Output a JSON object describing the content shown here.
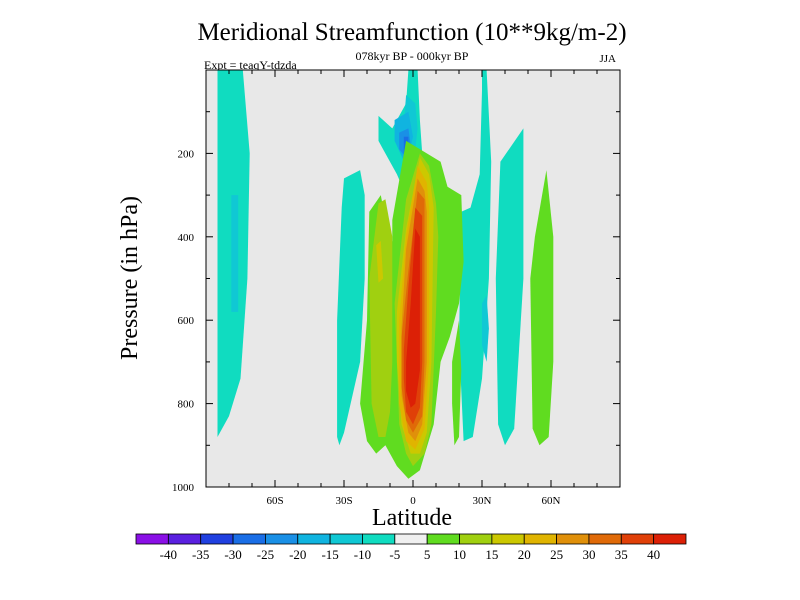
{
  "chart_data": {
    "type": "heatmap",
    "title": "Meridional Streamfunction (10**9kg/m-2)",
    "subtitle": "078kyr BP - 000kyr BP",
    "left_label": "Expt = teaqY-tdzda",
    "right_label": "JJA",
    "xlabel": "Latitude",
    "ylabel": "Pressure (in hPa)",
    "xlim": [
      -90,
      90
    ],
    "ylim": [
      0,
      1000
    ],
    "y_inverted": true,
    "xticks": [
      -60,
      -30,
      0,
      30,
      60
    ],
    "xtick_labels": [
      "60S",
      "30S",
      "0",
      "30N",
      "60N"
    ],
    "yticks": [
      200,
      400,
      600,
      800,
      1000
    ],
    "ytick_labels": [
      "200",
      "400",
      "600",
      "800",
      "1000"
    ],
    "background_fill": "#e8e8e8",
    "colorbar": {
      "labels": [
        "-40",
        "-35",
        "-30",
        "-25",
        "-20",
        "-15",
        "-10",
        "-5",
        "5",
        "10",
        "15",
        "20",
        "25",
        "30",
        "35",
        "40"
      ],
      "colors": [
        "#8a10e6",
        "#5a20e0",
        "#2040e0",
        "#1a6ee6",
        "#1a90e6",
        "#10b4e0",
        "#10c8d4",
        "#10dcc0",
        "#f0f0f0",
        "#60dc20",
        "#a0d010",
        "#ccc800",
        "#e0b400",
        "#e0900a",
        "#e06a08",
        "#e04008",
        "#dc2006"
      ]
    },
    "contours": [
      {
        "value": -5,
        "color": "#10dcc0",
        "lat": [
          -85,
          -74,
          -71,
          -72,
          -75,
          -80,
          -85,
          -85
        ],
        "p": [
          0,
          0,
          200,
          500,
          740,
          830,
          880,
          0
        ]
      },
      {
        "value": -5,
        "color": "#10dcc0",
        "lat": [
          -30,
          -23,
          -21,
          -21,
          -23,
          -30,
          -32,
          -33,
          -33,
          -31
        ],
        "p": [
          260,
          240,
          300,
          500,
          700,
          870,
          900,
          880,
          600,
          330
        ]
      },
      {
        "value": -5,
        "color": "#10dcc0",
        "lat": [
          -9,
          -3,
          -2,
          2,
          3,
          4,
          0,
          -7,
          -15,
          -15
        ],
        "p": [
          140,
          80,
          0,
          0,
          120,
          200,
          340,
          250,
          170,
          110
        ]
      },
      {
        "value": -5,
        "color": "#10dcc0",
        "lat": [
          21,
          25,
          29,
          30,
          30,
          32,
          34,
          33,
          30,
          26,
          22,
          20
        ],
        "p": [
          340,
          330,
          250,
          50,
          0,
          0,
          220,
          500,
          740,
          880,
          890,
          650
        ]
      },
      {
        "value": -5,
        "color": "#10dcc0",
        "lat": [
          38,
          48,
          48,
          44,
          40,
          37,
          36
        ],
        "p": [
          220,
          140,
          500,
          860,
          900,
          850,
          500
        ]
      },
      {
        "value": -10,
        "color": "#10c8d4",
        "lat": [
          -79,
          -76,
          -76,
          -79
        ],
        "p": [
          300,
          300,
          580,
          580
        ]
      },
      {
        "value": -10,
        "color": "#10c8d4",
        "lat": [
          -3,
          1,
          2,
          0,
          -4
        ],
        "p": [
          60,
          80,
          140,
          240,
          130
        ]
      },
      {
        "value": -10,
        "color": "#10c8d4",
        "lat": [
          30,
          32,
          33,
          32,
          30
        ],
        "p": [
          560,
          540,
          620,
          700,
          660
        ]
      },
      {
        "value": -15,
        "color": "#10b4e0",
        "lat": [
          -8,
          -2,
          0,
          -3,
          -8
        ],
        "p": [
          120,
          100,
          160,
          230,
          170
        ]
      },
      {
        "value": -20,
        "color": "#1a90e6",
        "lat": [
          -6,
          -2,
          -1,
          -3,
          -6
        ],
        "p": [
          150,
          140,
          180,
          210,
          190
        ]
      },
      {
        "value": -25,
        "color": "#1a6ee6",
        "lat": [
          -4,
          -2,
          -2,
          -4
        ],
        "p": [
          160,
          160,
          200,
          200
        ]
      },
      {
        "value": 5,
        "color": "#60dc20",
        "lat": [
          -19,
          -14,
          -10,
          -9,
          -9,
          -3,
          6,
          12,
          15,
          21,
          22,
          20,
          16,
          12,
          9,
          3,
          -2,
          -7,
          -12,
          -16,
          -20,
          -23,
          -20
        ],
        "p": [
          340,
          300,
          420,
          410,
          360,
          170,
          200,
          220,
          280,
          300,
          460,
          560,
          640,
          700,
          850,
          960,
          980,
          950,
          900,
          920,
          890,
          800,
          600
        ]
      },
      {
        "value": 5,
        "color": "#60dc20",
        "lat": [
          17,
          20,
          21,
          20,
          18,
          17
        ],
        "p": [
          700,
          600,
          720,
          880,
          900,
          800
        ]
      },
      {
        "value": 5,
        "color": "#60dc20",
        "lat": [
          53,
          58,
          61,
          61,
          59,
          55,
          52,
          51
        ],
        "p": [
          400,
          240,
          400,
          700,
          880,
          900,
          860,
          500
        ]
      },
      {
        "value": 10,
        "color": "#a0d010",
        "lat": [
          -15,
          -12,
          -9,
          -9,
          -10,
          -12,
          -15,
          -18,
          -19
        ],
        "p": [
          320,
          310,
          400,
          700,
          820,
          880,
          880,
          800,
          500
        ]
      },
      {
        "value": 10,
        "color": "#a0d010",
        "lat": [
          -8,
          -3,
          3,
          7,
          10,
          11,
          10,
          8,
          5,
          0,
          -3,
          -6,
          -7
        ],
        "p": [
          560,
          310,
          200,
          230,
          320,
          400,
          580,
          850,
          920,
          950,
          920,
          850,
          700
        ]
      },
      {
        "value": 15,
        "color": "#ccc800",
        "lat": [
          -7,
          -3,
          3,
          7,
          9,
          8,
          6,
          3,
          -1,
          -5,
          -7
        ],
        "p": [
          580,
          380,
          210,
          250,
          330,
          700,
          870,
          920,
          920,
          850,
          700
        ]
      },
      {
        "value": 15,
        "color": "#ccc800",
        "lat": [
          -16,
          -14,
          -13,
          -15
        ],
        "p": [
          420,
          410,
          500,
          510
        ]
      },
      {
        "value": 20,
        "color": "#e0b400",
        "lat": [
          -6,
          -3,
          2,
          6,
          7,
          7,
          5,
          1,
          -3,
          -6
        ],
        "p": [
          600,
          400,
          230,
          270,
          330,
          700,
          860,
          910,
          890,
          800
        ]
      },
      {
        "value": 25,
        "color": "#e0900a",
        "lat": [
          -5,
          -3,
          2,
          5,
          6,
          6,
          4,
          1,
          -2,
          -5
        ],
        "p": [
          620,
          430,
          260,
          290,
          340,
          700,
          850,
          890,
          870,
          780
        ]
      },
      {
        "value": 30,
        "color": "#e06a08",
        "lat": [
          -5,
          -2,
          2,
          5,
          5,
          4,
          0,
          -3,
          -5
        ],
        "p": [
          640,
          480,
          290,
          310,
          700,
          830,
          870,
          840,
          760
        ]
      },
      {
        "value": 35,
        "color": "#e04008",
        "lat": [
          -4,
          -2,
          1,
          4,
          4,
          3,
          0,
          -3,
          -4
        ],
        "p": [
          670,
          520,
          330,
          350,
          700,
          810,
          850,
          820,
          740
        ]
      },
      {
        "value": 40,
        "color": "#dc2006",
        "lat": [
          -3,
          -1,
          1,
          3,
          3,
          1,
          -1,
          -3
        ],
        "p": [
          700,
          560,
          380,
          400,
          720,
          800,
          810,
          770
        ]
      }
    ]
  }
}
